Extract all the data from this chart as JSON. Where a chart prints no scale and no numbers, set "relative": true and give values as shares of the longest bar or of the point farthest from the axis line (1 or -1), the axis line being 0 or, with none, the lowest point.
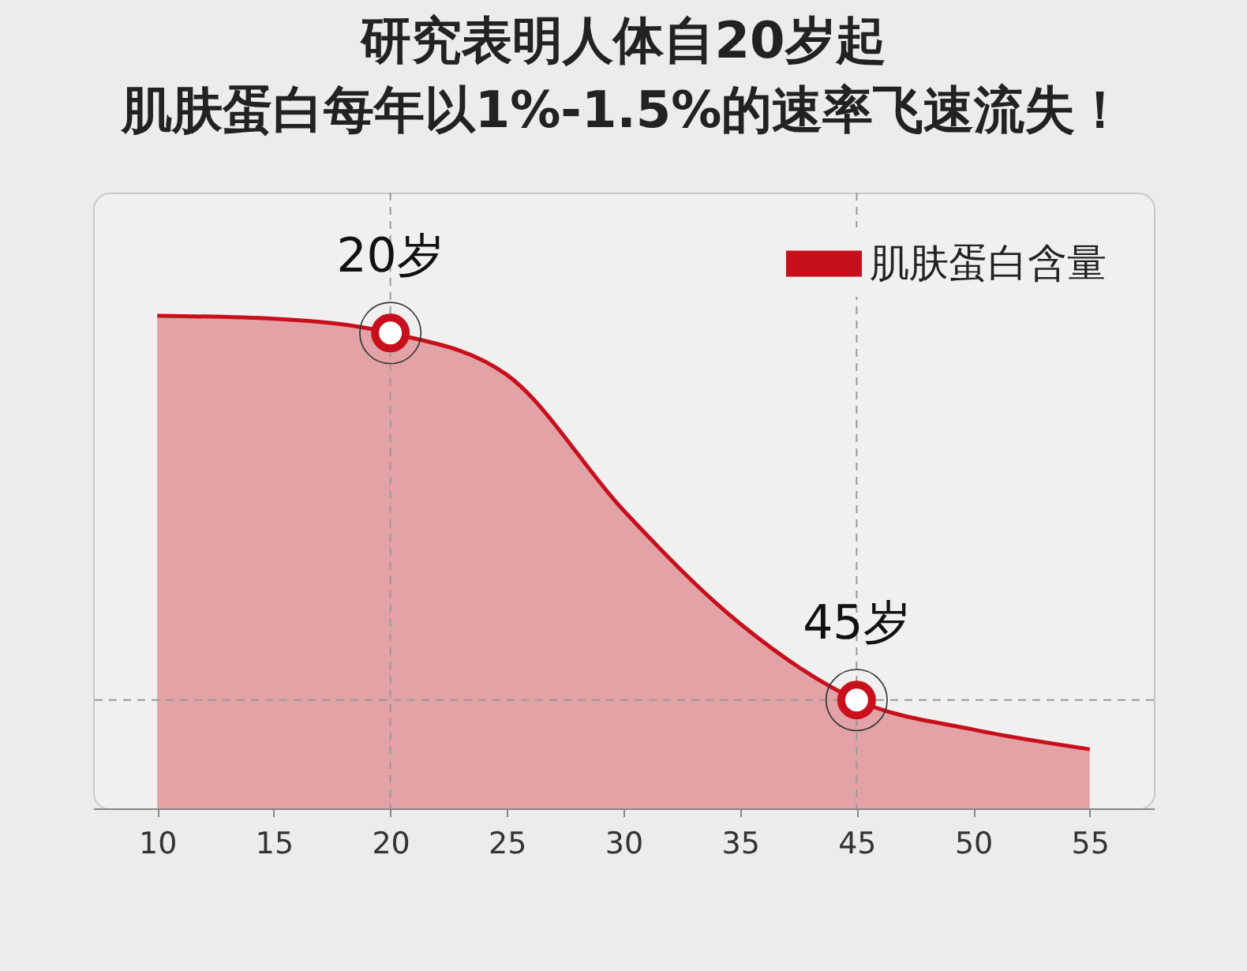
{
  "chart_data": {
    "type": "area",
    "title": "研究表明人体自20岁起",
    "subtitle": "肌肤蛋白每年以1%-1.5%的速率飞速流失！",
    "relative": true,
    "legend": "top right",
    "categories": [
      "10",
      "15",
      "20",
      "25",
      "30",
      "35",
      "45",
      "50",
      "55"
    ],
    "series": [
      {
        "name": "肌肤蛋白含量",
        "color": "#c8101c",
        "values": [
          1.0,
          0.994,
          0.965,
          0.88,
          0.605,
          0.375,
          0.22,
          0.16,
          0.12
        ]
      }
    ],
    "annotations": [
      {
        "text": "20岁",
        "x": "20",
        "y": 0.965
      },
      {
        "text": "45岁",
        "x": "45",
        "y": 0.22
      }
    ],
    "ref_lines": [
      {
        "axis": "x",
        "value": "20",
        "line_style": "dashed",
        "color": "#999999"
      },
      {
        "axis": "x",
        "value": "45",
        "line_style": "dashed",
        "color": "#999999"
      },
      {
        "axis": "y",
        "value": 0.22,
        "line_style": "dashed",
        "color": "#999999"
      }
    ]
  }
}
